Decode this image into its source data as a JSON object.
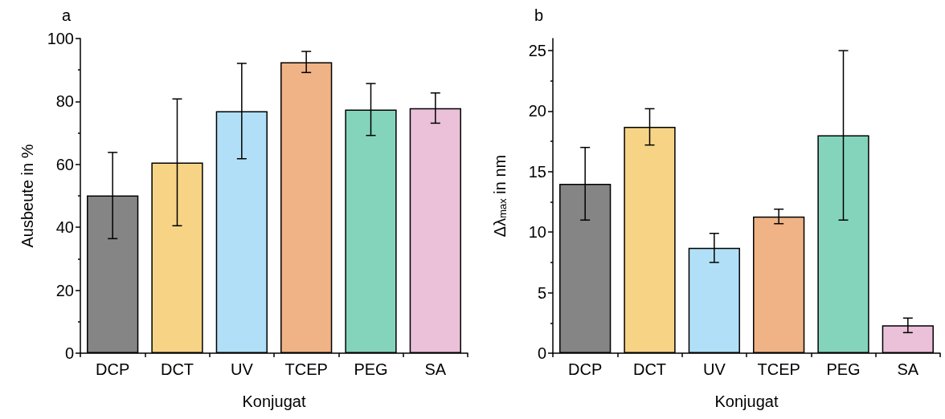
{
  "chart_data": [
    {
      "type": "bar",
      "title": "a",
      "xlabel": "Konjugat",
      "ylabel": "Ausbeute in %",
      "categories": [
        "DCP",
        "DCT",
        "UV",
        "TCEP",
        "PEG",
        "SA"
      ],
      "values": [
        50.1,
        60.6,
        76.9,
        92.5,
        77.4,
        77.9
      ],
      "colors": [
        "#858585",
        "#f7d485",
        "#b1dff7",
        "#f0b385",
        "#84d4bc",
        "#ebc0d9"
      ],
      "errors": [
        [
          36.4,
          63.8
        ],
        [
          40.5,
          80.8
        ],
        [
          61.8,
          92.1
        ],
        [
          89.2,
          95.9
        ],
        [
          69.2,
          85.7
        ],
        [
          73.1,
          82.7
        ]
      ],
      "ylim": [
        0,
        100
      ],
      "yticks": [
        0,
        20,
        40,
        60,
        80,
        100
      ],
      "grid": false
    },
    {
      "type": "bar",
      "title": "b",
      "xlabel": "Konjugat",
      "ylabel": "Δλ$_{max}$ in nm",
      "categories": [
        "DCP",
        "DCT",
        "UV",
        "TCEP",
        "PEG",
        "SA"
      ],
      "values": [
        14.0,
        18.7,
        8.7,
        11.3,
        18.0,
        2.3
      ],
      "colors": [
        "#858585",
        "#f7d485",
        "#b1dff7",
        "#f0b385",
        "#84d4bc",
        "#ebc0d9"
      ],
      "errors": [
        [
          11.0,
          17.0
        ],
        [
          17.2,
          20.2
        ],
        [
          7.5,
          9.9
        ],
        [
          10.7,
          11.9
        ],
        [
          11.0,
          25.0
        ],
        [
          1.7,
          2.9
        ]
      ],
      "ylim": [
        0,
        26
      ],
      "yticks": [
        0,
        5,
        10,
        15,
        20,
        25
      ],
      "grid": false
    }
  ]
}
